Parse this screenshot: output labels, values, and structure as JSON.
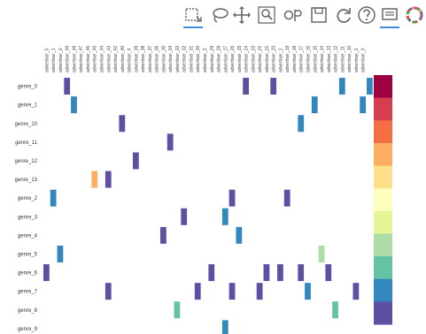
{
  "toolbar": {
    "tools": [
      {
        "name": "box-select-icon",
        "active": true
      },
      {
        "name": "lasso-select-icon",
        "active": false
      },
      {
        "name": "pan-icon",
        "active": false
      },
      {
        "name": "box-zoom-icon",
        "active": false
      },
      {
        "name": "hover-icon",
        "active": false
      },
      {
        "name": "save-icon",
        "active": false
      },
      {
        "name": "reset-icon",
        "active": false
      },
      {
        "name": "help-icon",
        "active": false
      },
      {
        "name": "tooltip-icon",
        "active": true
      },
      {
        "name": "bokeh-logo-icon",
        "active": false
      }
    ]
  },
  "chart_data": {
    "type": "heatmap",
    "title": "",
    "xlabel": "",
    "ylabel": "",
    "rows": [
      "genre_0",
      "genre_1",
      "genre_10",
      "genre_11",
      "genre_12",
      "genre_13",
      "genre_2",
      "genre_3",
      "genre_4",
      "genre_5",
      "genre_6",
      "genre_7",
      "genre_8",
      "genre_9"
    ],
    "columns": [
      "advertiser_5",
      "advertiser_1",
      "advertiser_0",
      "advertiser_49",
      "advertiser_48",
      "advertiser_47",
      "advertiser_46",
      "advertiser_45",
      "advertiser_44",
      "advertiser_43",
      "advertiser_42",
      "advertiser_40",
      "advertiser_4",
      "advertiser_39",
      "advertiser_38",
      "advertiser_37",
      "advertiser_36",
      "advertiser_35",
      "advertiser_34",
      "advertiser_33",
      "advertiser_32",
      "advertiser_31",
      "advertiser_30",
      "advertiser_3",
      "advertiser_29",
      "advertiser_28",
      "advertiser_27",
      "advertiser_26",
      "advertiser_25",
      "advertiser_24",
      "advertiser_23",
      "advertiser_22",
      "advertiser_21",
      "advertiser_20",
      "advertiser_2",
      "advertiser_19",
      "advertiser_18",
      "advertiser_17",
      "advertiser_16",
      "advertiser_15",
      "advertiser_14",
      "advertiser_13",
      "advertiser_12",
      "advertiser_11",
      "advertiser_10",
      "advertiser_1",
      "advertiser_0"
    ],
    "cells": [
      {
        "row": "genre_0",
        "col": 3,
        "level": 10
      },
      {
        "row": "genre_0",
        "col": 29,
        "level": 10
      },
      {
        "row": "genre_0",
        "col": 33,
        "level": 10
      },
      {
        "row": "genre_0",
        "col": 43,
        "level": 9
      },
      {
        "row": "genre_0",
        "col": 47,
        "level": 9
      },
      {
        "row": "genre_1",
        "col": 4,
        "level": 9
      },
      {
        "row": "genre_1",
        "col": 39,
        "level": 9
      },
      {
        "row": "genre_1",
        "col": 46,
        "level": 9
      },
      {
        "row": "genre_10",
        "col": 37,
        "level": 9
      },
      {
        "row": "genre_10",
        "col": 11,
        "level": 10
      },
      {
        "row": "genre_11",
        "col": 18,
        "level": 10
      },
      {
        "row": "genre_12",
        "col": 13,
        "level": 10
      },
      {
        "row": "genre_13",
        "col": 7,
        "level": 3
      },
      {
        "row": "genre_13",
        "col": 9,
        "level": 10
      },
      {
        "row": "genre_2",
        "col": 1,
        "level": 9
      },
      {
        "row": "genre_2",
        "col": 27,
        "level": 10
      },
      {
        "row": "genre_2",
        "col": 35,
        "level": 10
      },
      {
        "row": "genre_3",
        "col": 20,
        "level": 10
      },
      {
        "row": "genre_3",
        "col": 26,
        "level": 9
      },
      {
        "row": "genre_4",
        "col": 17,
        "level": 10
      },
      {
        "row": "genre_4",
        "col": 28,
        "level": 9
      },
      {
        "row": "genre_5",
        "col": 2,
        "level": 9
      },
      {
        "row": "genre_5",
        "col": 40,
        "level": 7
      },
      {
        "row": "genre_6",
        "col": 0,
        "level": 10
      },
      {
        "row": "genre_6",
        "col": 24,
        "level": 10
      },
      {
        "row": "genre_6",
        "col": 32,
        "level": 10
      },
      {
        "row": "genre_6",
        "col": 34,
        "level": 10
      },
      {
        "row": "genre_6",
        "col": 37,
        "level": 10
      },
      {
        "row": "genre_6",
        "col": 41,
        "level": 10
      },
      {
        "row": "genre_7",
        "col": 9,
        "level": 10
      },
      {
        "row": "genre_7",
        "col": 22,
        "level": 10
      },
      {
        "row": "genre_7",
        "col": 27,
        "level": 10
      },
      {
        "row": "genre_7",
        "col": 31,
        "level": 10
      },
      {
        "row": "genre_7",
        "col": 38,
        "level": 9
      },
      {
        "row": "genre_7",
        "col": 45,
        "level": 10
      },
      {
        "row": "genre_8",
        "col": 19,
        "level": 8
      },
      {
        "row": "genre_8",
        "col": 42,
        "level": 8
      },
      {
        "row": "genre_9",
        "col": 26,
        "level": 9
      }
    ],
    "palette": [
      "#9e0142",
      "#d53e4f",
      "#f46d43",
      "#fdae61",
      "#fee08b",
      "#ffffbf",
      "#e6f598",
      "#abdda4",
      "#66c2a5",
      "#3288bd",
      "#5e4fa2"
    ],
    "colorbar": {
      "position": "right",
      "ticks": []
    },
    "grid": false,
    "legend": "none"
  }
}
